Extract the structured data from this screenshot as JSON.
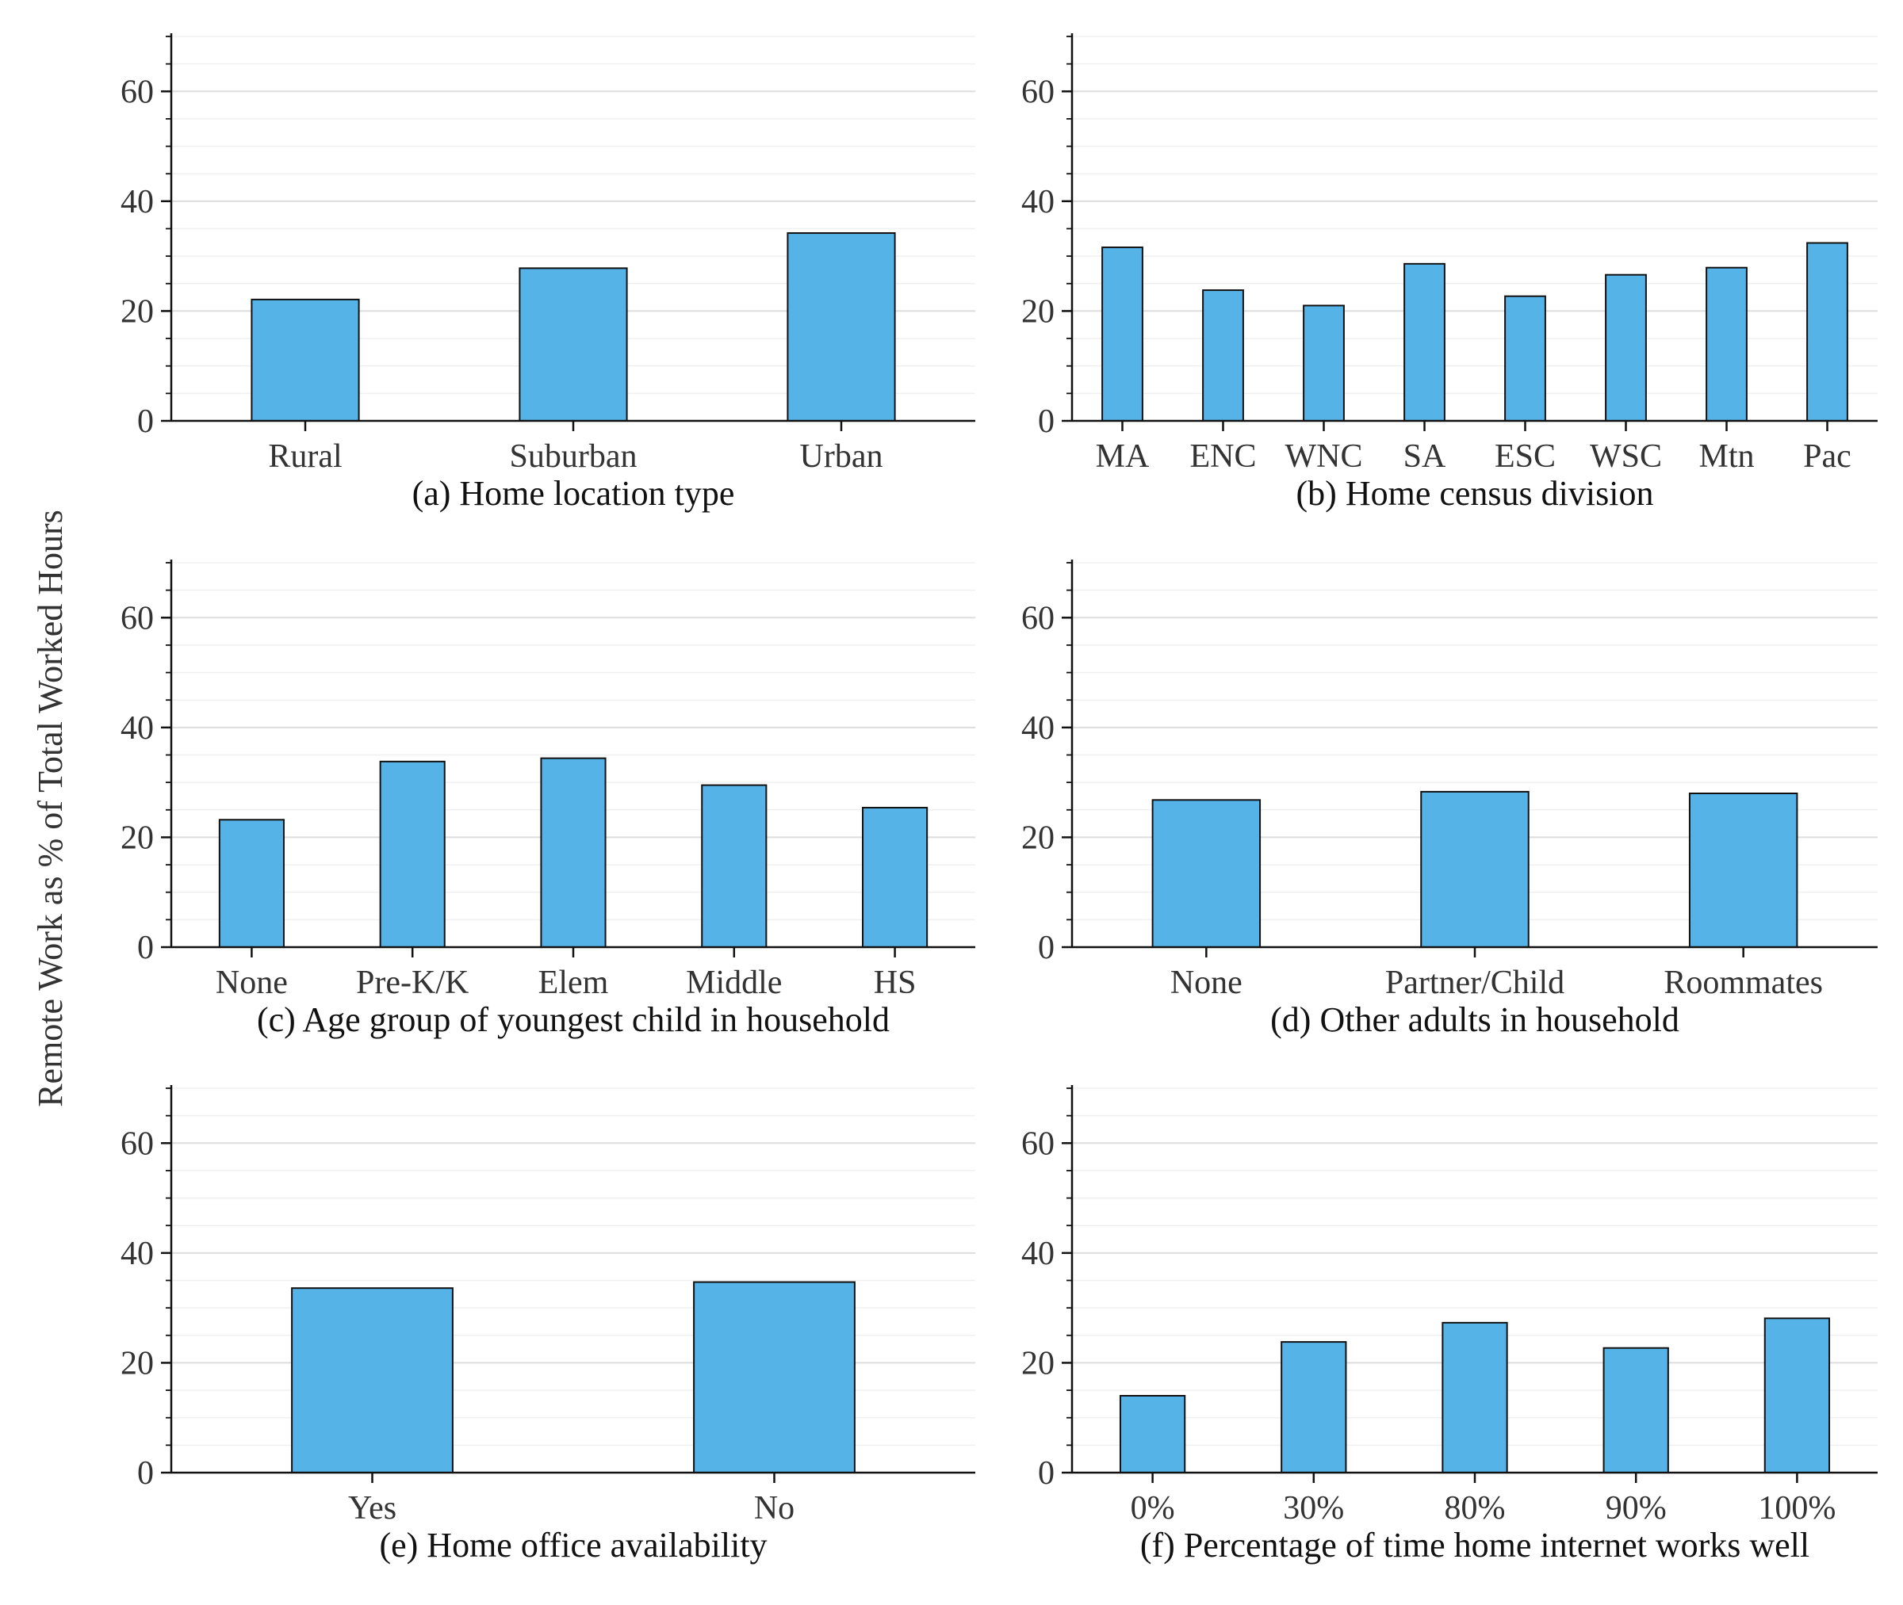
{
  "figure": {
    "ylabel": "Remote Work as % of Total Worked Hours",
    "bar_color": "#56B3E7"
  },
  "chart_data": [
    {
      "type": "bar",
      "title": "(a) Home location type",
      "ylabel": "Remote Work as % of Total Worked Hours",
      "categories": [
        "Rural",
        "Suburban",
        "Urban"
      ],
      "values": [
        22.1,
        27.8,
        34.2
      ],
      "ylim": [
        0,
        70
      ],
      "yticks": [
        0,
        20,
        40,
        60
      ],
      "grid": true
    },
    {
      "type": "bar",
      "title": "(b) Home census division",
      "ylabel": "Remote Work as % of Total Worked Hours",
      "categories": [
        "MA",
        "ENC",
        "WNC",
        "SA",
        "ESC",
        "WSC",
        "Mtn",
        "Pac"
      ],
      "values": [
        31.6,
        23.8,
        21.0,
        28.6,
        22.7,
        26.6,
        27.9,
        32.4
      ],
      "ylim": [
        0,
        70
      ],
      "yticks": [
        0,
        20,
        40,
        60
      ],
      "grid": true
    },
    {
      "type": "bar",
      "title": "(c) Age group of youngest child in household",
      "ylabel": "Remote Work as % of Total Worked Hours",
      "categories": [
        "None",
        "Pre-K/K",
        "Elem",
        "Middle",
        "HS"
      ],
      "values": [
        23.2,
        33.8,
        34.4,
        29.5,
        25.4
      ],
      "ylim": [
        0,
        70
      ],
      "yticks": [
        0,
        20,
        40,
        60
      ],
      "grid": true
    },
    {
      "type": "bar",
      "title": "(d) Other adults in household",
      "ylabel": "Remote Work as % of Total Worked Hours",
      "categories": [
        "None",
        "Partner/Child",
        "Roommates"
      ],
      "values": [
        26.8,
        28.3,
        28.0
      ],
      "ylim": [
        0,
        70
      ],
      "yticks": [
        0,
        20,
        40,
        60
      ],
      "grid": true
    },
    {
      "type": "bar",
      "title": "(e) Home office availability",
      "ylabel": "Remote Work as % of Total Worked Hours",
      "categories": [
        "Yes",
        "No"
      ],
      "values": [
        33.6,
        34.7
      ],
      "ylim": [
        0,
        70
      ],
      "yticks": [
        0,
        20,
        40,
        60
      ],
      "grid": true
    },
    {
      "type": "bar",
      "title": "(f) Percentage of time home internet works well",
      "ylabel": "Remote Work as % of Total Worked Hours",
      "categories": [
        "0%",
        "30%",
        "80%",
        "90%",
        "100%"
      ],
      "values": [
        14.0,
        23.8,
        27.3,
        22.7,
        28.1
      ],
      "ylim": [
        0,
        70
      ],
      "yticks": [
        0,
        20,
        40,
        60
      ],
      "grid": true
    }
  ]
}
